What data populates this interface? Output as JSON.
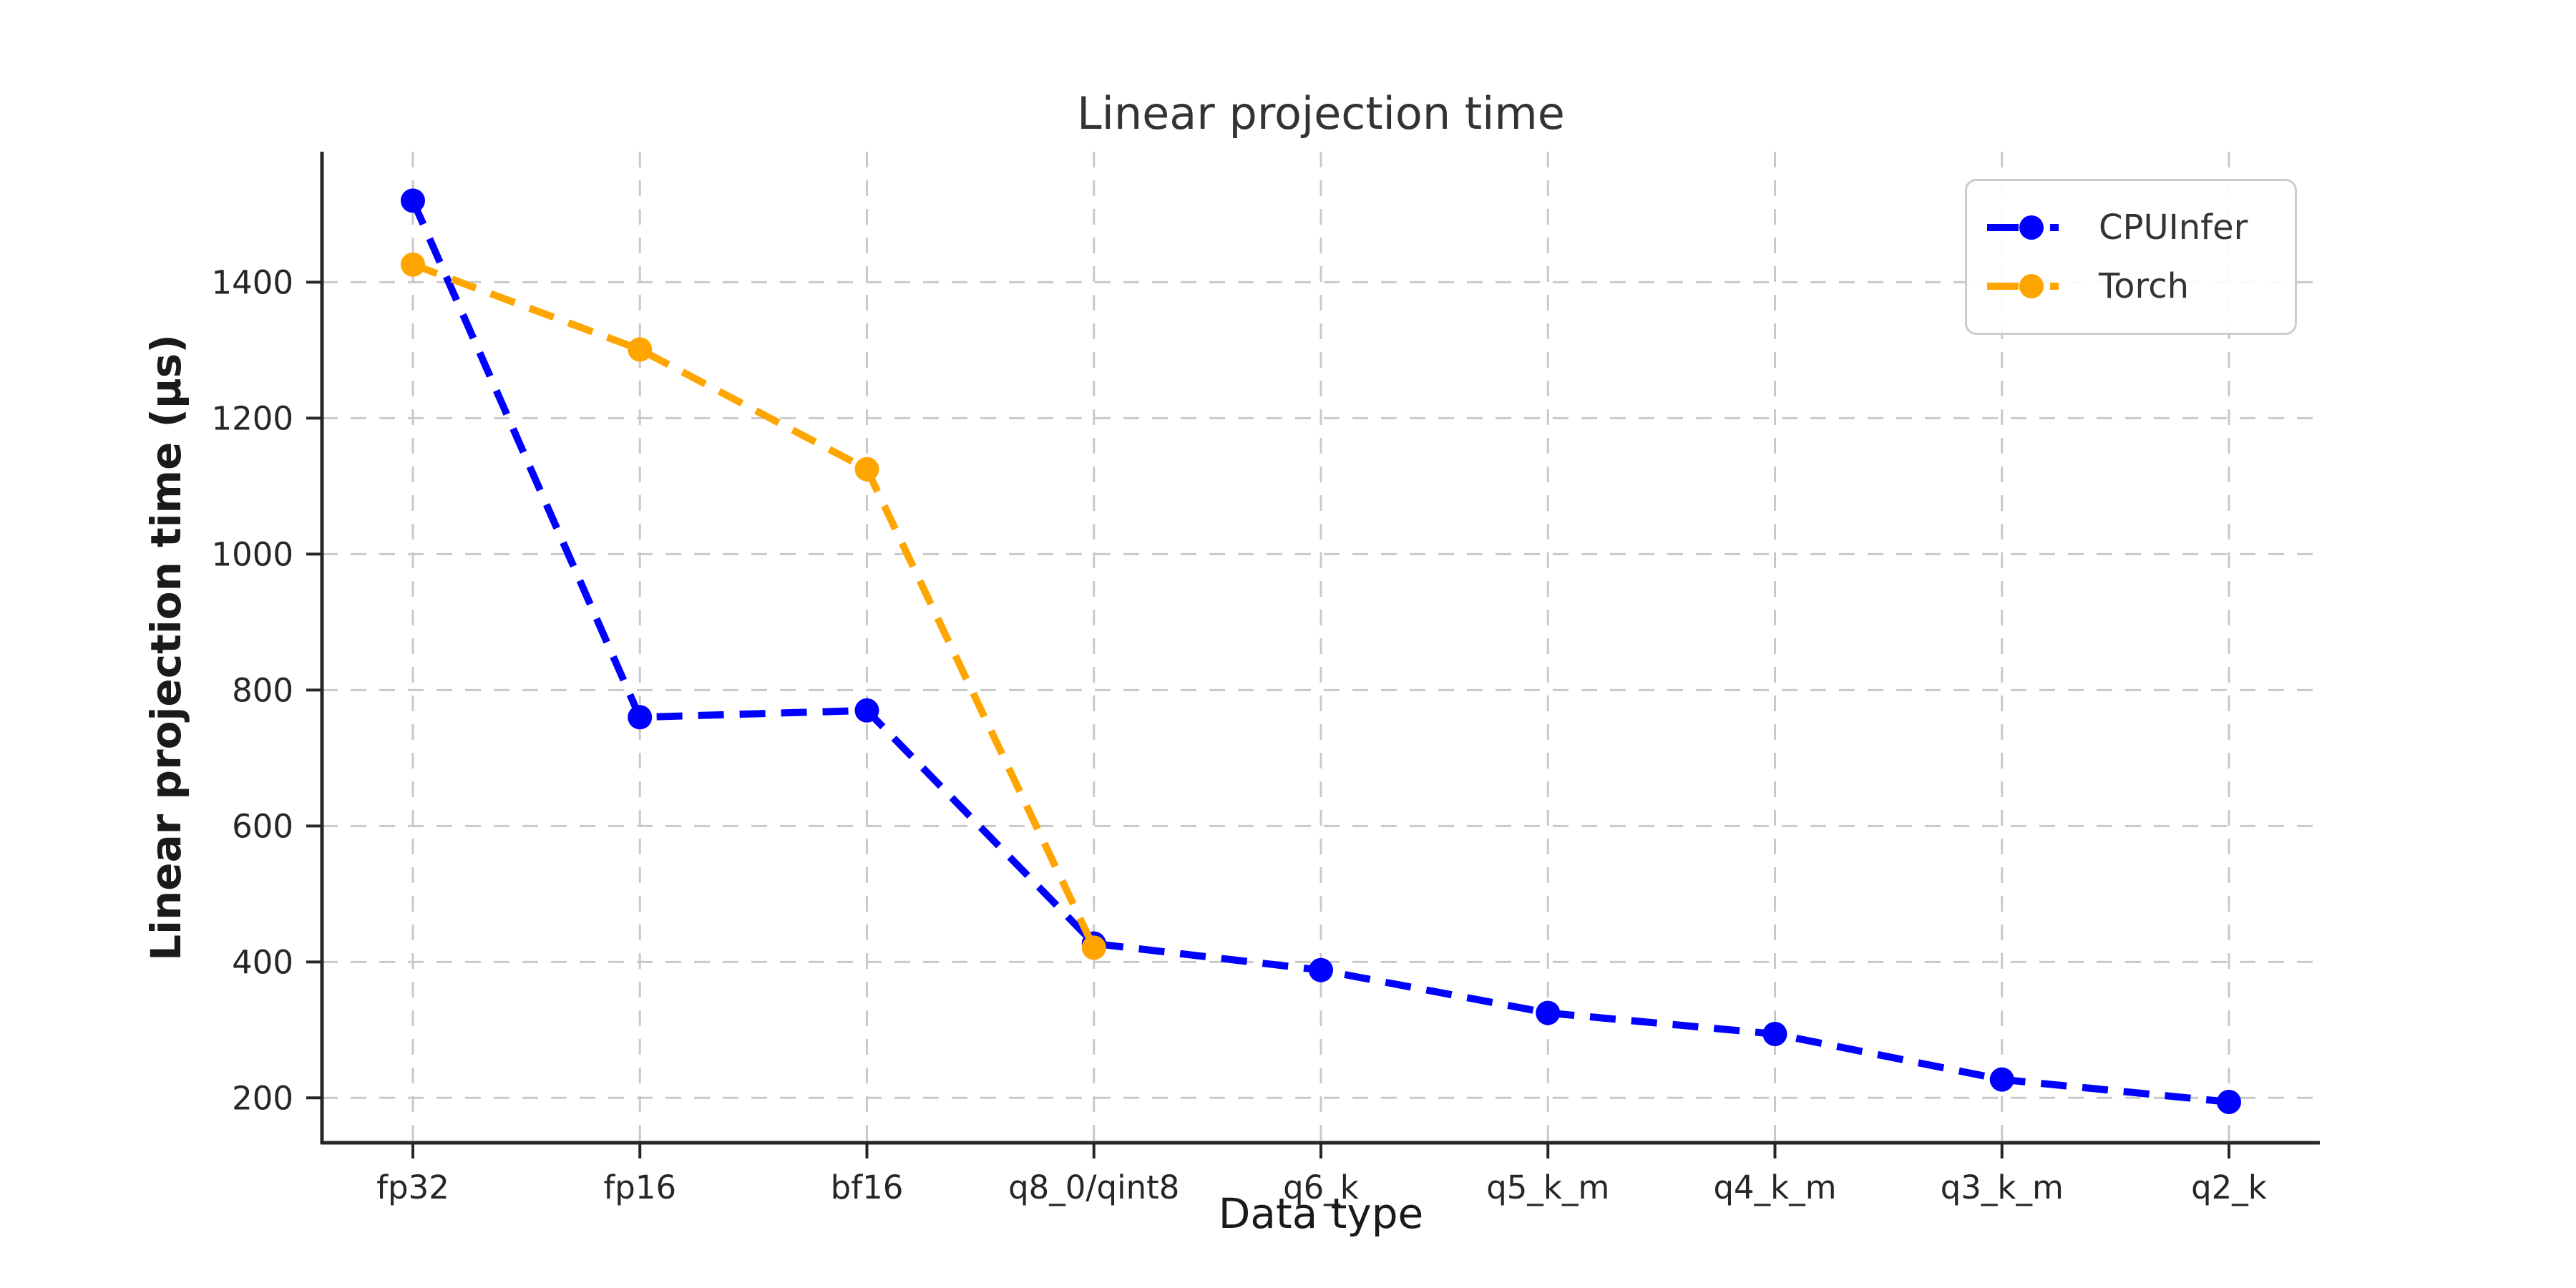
{
  "title": "Linear projection time",
  "chart_data": {
    "type": "line",
    "title": "Linear projection time",
    "xlabel": "Data type",
    "ylabel": "Linear projection time (µs)",
    "categories": [
      "fp32",
      "fp16",
      "bf16",
      "q8_0/qint8",
      "q6_k",
      "q5_k_m",
      "q4_k_m",
      "q3_k_m",
      "q2_k"
    ],
    "series": [
      {
        "name": "CPUInfer",
        "color": "#0000ff",
        "values": [
          1520,
          760,
          770,
          427,
          388,
          325,
          294,
          227,
          194
        ]
      },
      {
        "name": "Torch",
        "color": "#ffa500",
        "values": [
          1426,
          1301,
          1125,
          421,
          null,
          null,
          null,
          null,
          null
        ]
      }
    ],
    "yticks": [
      200,
      400,
      600,
      800,
      1000,
      1200,
      1400
    ],
    "ylim": [
      134,
      1592
    ],
    "grid": true,
    "grid_style": "dashed",
    "line_style": "dashed",
    "marker": "circle",
    "legend_position": "upper right",
    "colors": {
      "background": "#ffffff",
      "grid": "#c9c9c9",
      "spine": "#262626",
      "tick_label": "#262626",
      "title_text": "#333333"
    }
  },
  "legend": {
    "items": [
      {
        "label": "CPUInfer",
        "color": "#0000ff"
      },
      {
        "label": "Torch",
        "color": "#ffa500"
      }
    ]
  }
}
